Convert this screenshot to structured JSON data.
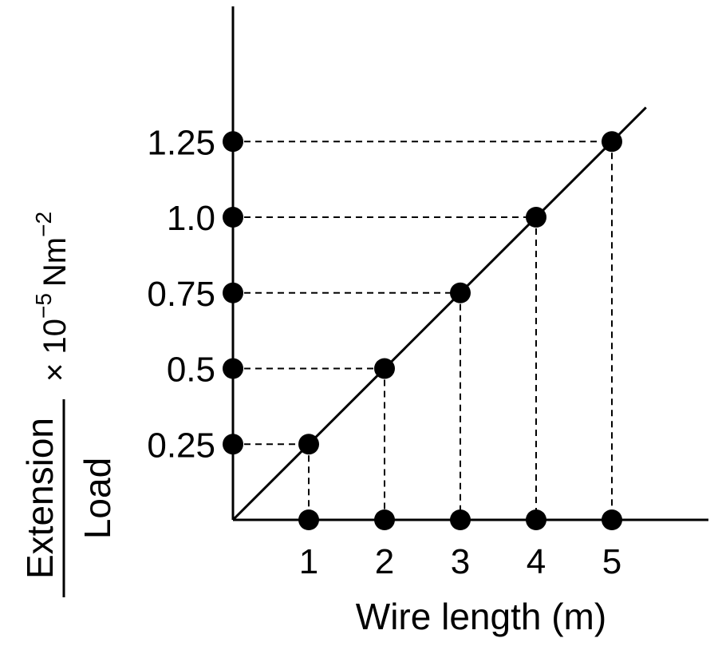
{
  "chart_data": {
    "type": "scatter",
    "xlabel": "Wire length (m)",
    "ylabel": {
      "numerator": "Extension",
      "denominator": "Load",
      "multiplier": "× 10",
      "exponent": "−5",
      "unit": "Nm",
      "unit_exponent": "−2"
    },
    "x_ticks": [
      "1",
      "2",
      "3",
      "4",
      "5"
    ],
    "y_ticks": [
      "0.25",
      "0.5",
      "0.75",
      "1.0",
      "1.25"
    ],
    "xlim": [
      0,
      6
    ],
    "ylim": [
      0,
      1.38
    ],
    "series": [
      {
        "x": [
          1,
          2,
          3,
          4,
          5
        ],
        "y": [
          0.25,
          0.5,
          0.75,
          1.0,
          1.25
        ]
      }
    ],
    "trend_line": {
      "x": [
        0,
        5.45
      ],
      "y": [
        0,
        1.3625
      ]
    },
    "projection_lines": "dashed",
    "grid": false,
    "colors": {
      "marks": "#000000",
      "axes": "#000000"
    }
  }
}
